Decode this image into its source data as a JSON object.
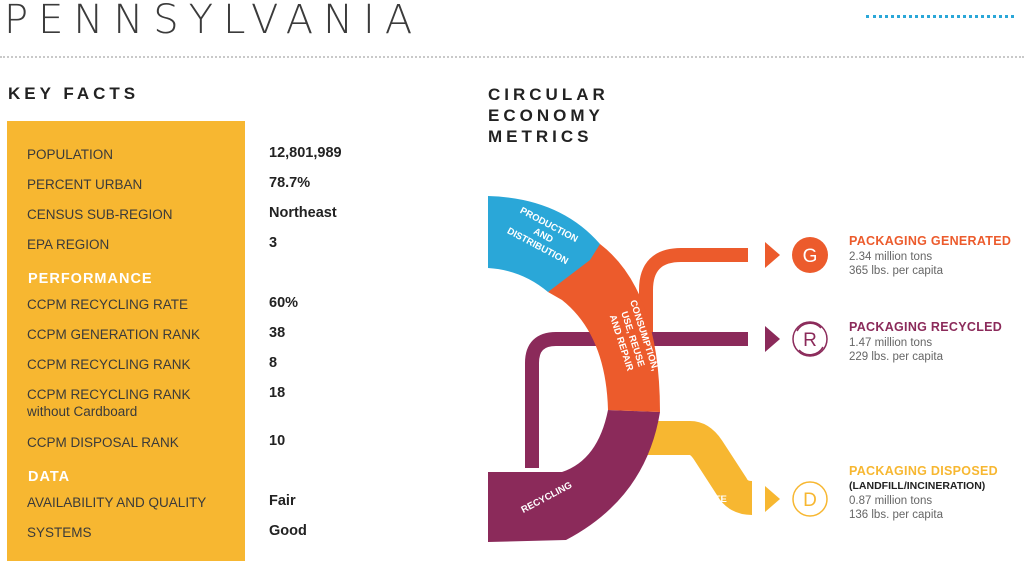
{
  "page": {
    "title": "PENNSYLVANIA"
  },
  "key_facts": {
    "heading": "KEY FACTS",
    "facts": [
      {
        "label": "POPULATION",
        "value": "12,801,989"
      },
      {
        "label": "PERCENT URBAN",
        "value": "78.7%"
      },
      {
        "label": "CENSUS SUB-REGION",
        "value": "Northeast"
      },
      {
        "label": "EPA REGION",
        "value": "3"
      }
    ],
    "performance": {
      "heading": "PERFORMANCE",
      "items": [
        {
          "label": "CCPM RECYCLING RATE",
          "value": "60%"
        },
        {
          "label": "CCPM GENERATION RANK",
          "value": "38"
        },
        {
          "label": "CCPM RECYCLING RANK",
          "value": "8"
        },
        {
          "label": "CCPM RECYCLING RANK",
          "sublabel": "without Cardboard",
          "value": "18"
        },
        {
          "label": "CCPM DISPOSAL RANK",
          "value": "10"
        }
      ]
    },
    "data_section": {
      "heading": "DATA",
      "items": [
        {
          "label": "AVAILABILITY AND QUALITY",
          "value": "Fair"
        },
        {
          "label": "SYSTEMS",
          "value": "Good"
        }
      ]
    }
  },
  "circular_economy": {
    "heading": [
      "CIRCULAR",
      "ECONOMY",
      "METRICS"
    ],
    "diagram": {
      "production": [
        "PRODUCTION",
        "AND",
        "DISTRIBUTION"
      ],
      "consumption": [
        "CONSUMPTION,",
        "USE, REUSE",
        "AND REPAIR"
      ],
      "recycling": "RECYCLING",
      "waste": "WASTE"
    },
    "metrics": [
      {
        "letter": "G",
        "title": "PACKAGING GENERATED",
        "lines": [
          "2.34 million tons",
          "365 lbs. per capita"
        ]
      },
      {
        "letter": "R",
        "title": "PACKAGING RECYCLED",
        "lines": [
          "1.47 million tons",
          "229 lbs. per capita"
        ]
      },
      {
        "letter": "D",
        "title": "PACKAGING DISPOSED",
        "subtitle": "(LANDFILL/INCINERATION)",
        "lines": [
          "0.87 million tons",
          "136 lbs. per capita"
        ]
      }
    ]
  },
  "colors": {
    "blue": "#2aa7d8",
    "orange": "#ec5b2c",
    "purple": "#8b2a5a",
    "yellow": "#f7b731",
    "panel": "#f7b731"
  }
}
